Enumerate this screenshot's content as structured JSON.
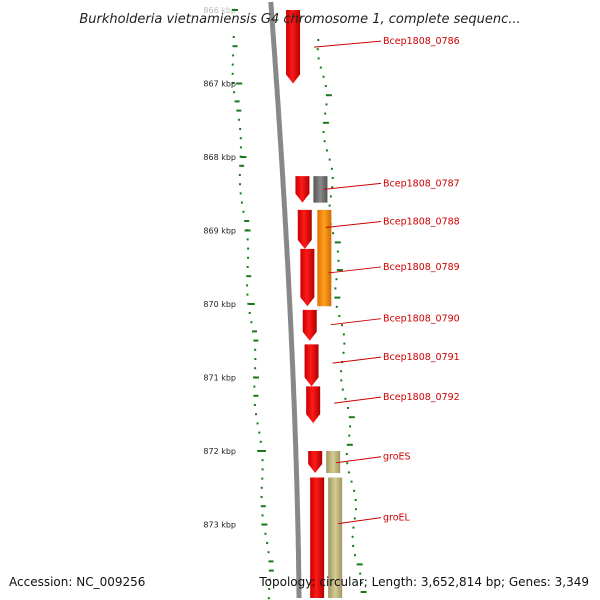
{
  "title": "Burkholderia vietnamiensis G4 chromosome 1, complete sequenc...",
  "ruler": {
    "labels": [
      "866 kbp",
      "867 kbp",
      "868 kbp",
      "869 kbp",
      "870 kbp",
      "871 kbp",
      "872 kbp",
      "873 kbp"
    ],
    "faded_first": true
  },
  "genes": [
    {
      "name": "Bcep1808_0786",
      "strand": "minus",
      "track": 0,
      "start_kbp": 866.0,
      "end_kbp": 867.0,
      "color": "#ee0000"
    },
    {
      "name": "Bcep1808_0787",
      "strand": "minus",
      "track": 0,
      "start_kbp": 868.26,
      "end_kbp": 868.62,
      "color": "#ee0000"
    },
    {
      "name": "",
      "strand": "none",
      "track": 1,
      "start_kbp": 868.26,
      "end_kbp": 868.62,
      "color": "#777777"
    },
    {
      "name": "Bcep1808_0788",
      "strand": "minus",
      "track": 0,
      "start_kbp": 868.72,
      "end_kbp": 869.25,
      "color": "#ee0000"
    },
    {
      "name": "",
      "strand": "none",
      "track": 1,
      "start_kbp": 868.72,
      "end_kbp": 870.03,
      "color": "#ff8800"
    },
    {
      "name": "Bcep1808_0789",
      "strand": "minus",
      "track": 0,
      "start_kbp": 869.25,
      "end_kbp": 870.03,
      "color": "#ee0000"
    },
    {
      "name": "Bcep1808_0790",
      "strand": "minus",
      "track": 0,
      "start_kbp": 870.08,
      "end_kbp": 870.5,
      "color": "#ee0000"
    },
    {
      "name": "Bcep1808_0791",
      "strand": "minus",
      "track": 0,
      "start_kbp": 870.55,
      "end_kbp": 871.12,
      "color": "#ee0000"
    },
    {
      "name": "Bcep1808_0792",
      "strand": "minus",
      "track": 0,
      "start_kbp": 871.12,
      "end_kbp": 871.62,
      "color": "#ee0000"
    },
    {
      "name": "groES",
      "strand": "minus",
      "track": 0,
      "start_kbp": 872.0,
      "end_kbp": 872.3,
      "color": "#ee0000"
    },
    {
      "name": "",
      "strand": "none",
      "track": 1,
      "start_kbp": 872.0,
      "end_kbp": 872.3,
      "color": "#bbb37a"
    },
    {
      "name": "groEL",
      "strand": "minus",
      "track": 0,
      "start_kbp": 872.36,
      "end_kbp": 874.0,
      "color": "#ee0000"
    },
    {
      "name": "",
      "strand": "none",
      "track": 1,
      "start_kbp": 872.36,
      "end_kbp": 874.0,
      "color": "#bbb37a"
    }
  ],
  "colors": {
    "backbone": "#888888",
    "gc_plot": "#1a7a1a",
    "label": "#cc0000"
  },
  "footer": {
    "accession": "Accession: NC_009256",
    "stats": "Topology: circular; Length: 3,652,814 bp; Genes: 3,349"
  }
}
